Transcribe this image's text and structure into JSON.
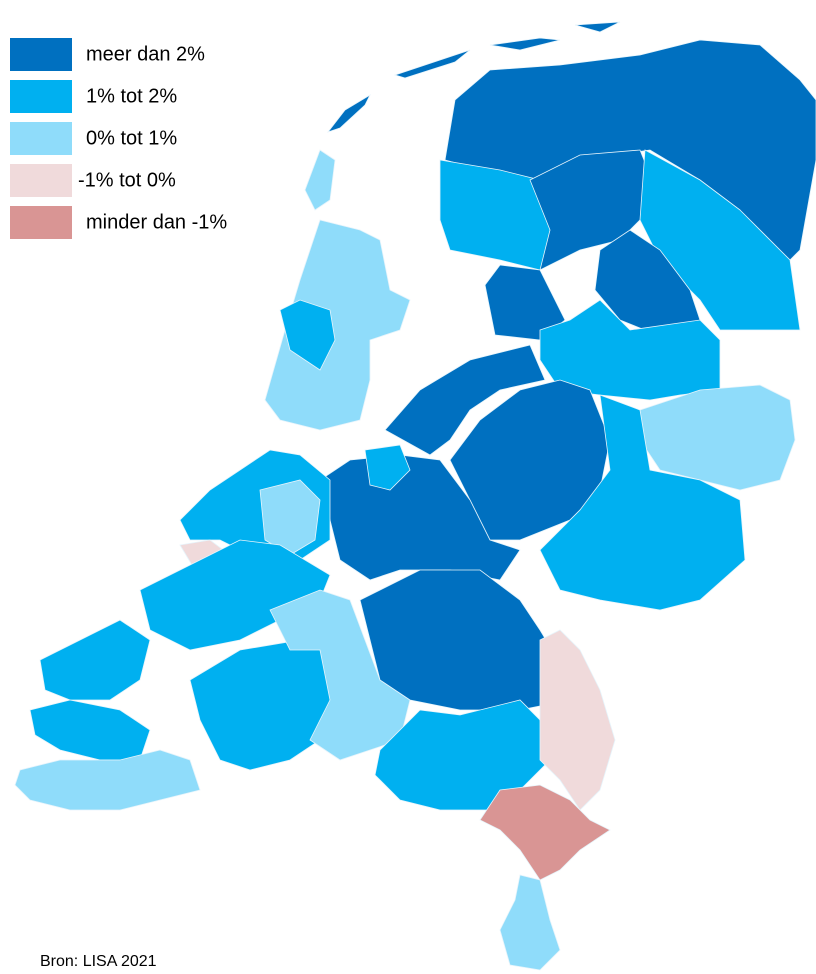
{
  "legend": {
    "items": [
      {
        "label": "meer dan 2%",
        "color": "#0070c0"
      },
      {
        "label": "1% tot 2%",
        "color": "#00b0f0"
      },
      {
        "label": "0% tot 1%",
        "color": "#8fdcfa"
      },
      {
        "label": "-1% tot 0%",
        "color": "#f0dadb"
      },
      {
        "label": "minder dan -1%",
        "color": "#d99594"
      }
    ]
  },
  "source": "Bron: LISA 2021"
}
